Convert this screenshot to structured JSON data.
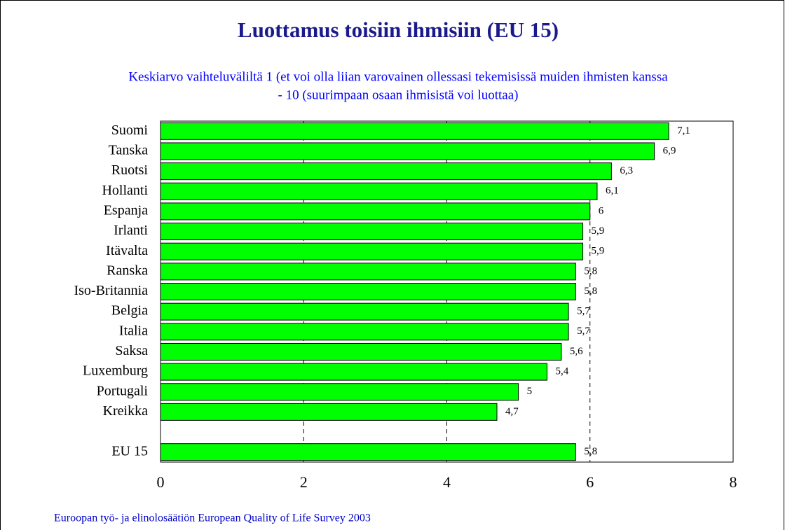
{
  "chart_data": {
    "type": "barh",
    "title": "Luottamus toisiin ihmisiin (EU 15)",
    "subtitle": [
      "Keskiarvo vaihteluväliltä 1 (et voi olla liian varovainen ollessasi tekemisissä muiden ihmisten kanssa",
      "- 10 (suurimpaan osaan ihmisistä voi luottaa)"
    ],
    "categories": [
      "Suomi",
      "Tanska",
      "Ruotsi",
      "Hollanti",
      "Espanja",
      "Irlanti",
      "Itävalta",
      "Ranska",
      "Iso-Britannia",
      "Belgia",
      "Italia",
      "Saksa",
      "Luxemburg",
      "Portugali",
      "Kreikka",
      null,
      "EU 15"
    ],
    "values": [
      7.1,
      6.9,
      6.3,
      6.1,
      6,
      5.9,
      5.9,
      5.8,
      5.8,
      5.7,
      5.7,
      5.6,
      5.4,
      5,
      4.7,
      null,
      5.8
    ],
    "value_labels": [
      "7,1",
      "6,9",
      "6,3",
      "6,1",
      "6",
      "5,9",
      "5,9",
      "5,8",
      "5,8",
      "5,7",
      "5,7",
      "5,6",
      "5,4",
      "5",
      "4,7",
      null,
      "5,8"
    ],
    "color": "#00ff00",
    "xlim": [
      0,
      8
    ],
    "xticks": [
      0,
      2,
      4,
      6,
      8
    ],
    "grid": true,
    "source": "Euroopan työ- ja elinolosäätiön European Quality of Life Survey 2003"
  }
}
